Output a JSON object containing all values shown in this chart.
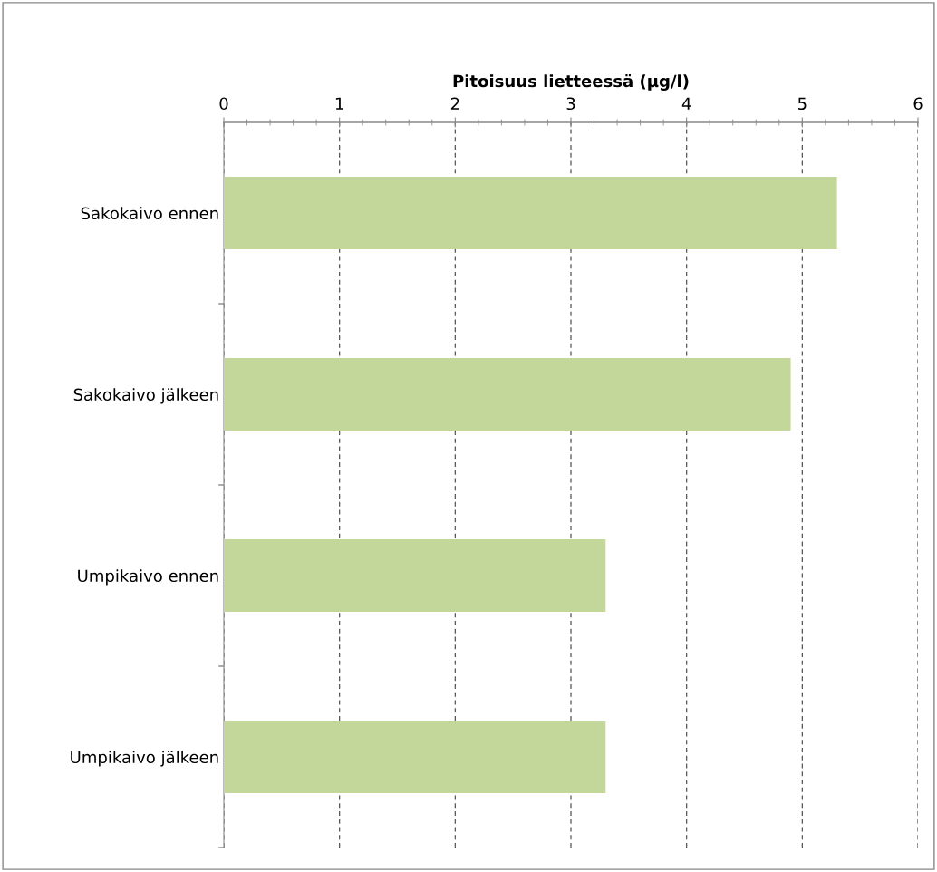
{
  "chart_data": {
    "type": "bar",
    "orientation": "horizontal",
    "xlabel": "Pitoisuus lietteessä (µg/l)",
    "categories": [
      "Sakokaivo ennen",
      "Sakokaivo jälkeen",
      "Umpikaivo ennen",
      "Umpikaivo jälkeen"
    ],
    "values": [
      5.3,
      4.9,
      3.3,
      3.3
    ],
    "color": "#c4d79b",
    "xlim": [
      0,
      6
    ],
    "xticks": [
      0,
      1,
      2,
      3,
      4,
      5,
      6
    ],
    "grid": "x",
    "legend": false
  }
}
